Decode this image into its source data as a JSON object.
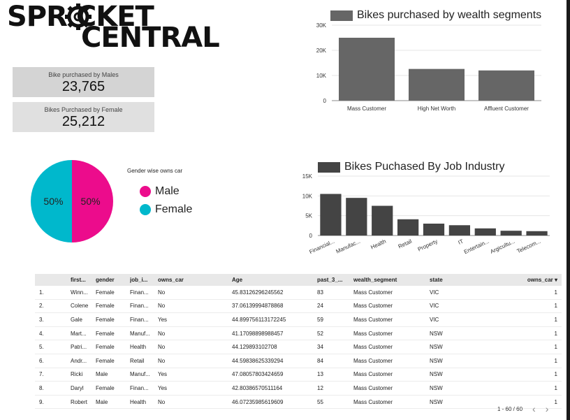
{
  "logo": {
    "line1": "SPR  CKET",
    "line2": "CENTRAL"
  },
  "kpis": [
    {
      "label": "Bike purchased by Males",
      "value": "23,765"
    },
    {
      "label": "Bikes Purchased by Female",
      "value": "25,212"
    }
  ],
  "colors": {
    "bar_wealth": "#666666",
    "bar_job": "#444444",
    "pie_male": "#ec0c8c",
    "pie_female": "#00b8cc"
  },
  "charts": {
    "wealth": {
      "title": "Bikes purchased by wealth segments"
    },
    "job": {
      "title": "Bikes Puchased By Job Industry"
    },
    "pie": {
      "title": "Gender wise owns car",
      "legend": [
        "Male",
        "Female"
      ]
    }
  },
  "chart_data": [
    {
      "type": "bar",
      "title": "Bikes purchased by wealth segments",
      "categories": [
        "Mass Customer",
        "High Net Worth",
        "Affluent Customer"
      ],
      "values": [
        25000,
        12600,
        12000
      ],
      "ylim": [
        0,
        30000
      ],
      "yticks": [
        "0",
        "10K",
        "20K",
        "30K"
      ],
      "grid": true
    },
    {
      "type": "bar",
      "title": "Bikes Puchased By Job Industry",
      "categories": [
        "Financial...",
        "Manufac...",
        "Health",
        "Retail",
        "Property",
        "IT",
        "Entertain...",
        "Argicultu...",
        "Telecom..."
      ],
      "values": [
        10500,
        9500,
        7500,
        4100,
        3000,
        2600,
        1800,
        1200,
        1100
      ],
      "ylim": [
        0,
        15000
      ],
      "yticks": [
        "0",
        "5K",
        "10K",
        "15K"
      ],
      "grid": true
    },
    {
      "type": "pie",
      "title": "Gender wise owns car",
      "labels": [
        "Male",
        "Female"
      ],
      "values": [
        50,
        50
      ],
      "slice_labels": [
        "50%",
        "50%"
      ]
    }
  ],
  "table": {
    "headers": [
      "",
      "first...",
      "gender",
      "job_i...",
      "owns_car",
      "Age",
      "past_3_...",
      "wealth_segment",
      "state",
      "owns_car ▾"
    ],
    "rows": [
      [
        "1.",
        "Winn...",
        "Female",
        "Finan...",
        "No",
        "45.83126296245562",
        "83",
        "Mass Customer",
        "VIC",
        "1"
      ],
      [
        "2.",
        "Colene",
        "Female",
        "Finan...",
        "No",
        "37.06139994878868",
        "24",
        "Mass Customer",
        "VIC",
        "1"
      ],
      [
        "3.",
        "Gale",
        "Female",
        "Finan...",
        "Yes",
        "44.899756113172245",
        "59",
        "Mass Customer",
        "VIC",
        "1"
      ],
      [
        "4.",
        "Mart...",
        "Female",
        "Manuf...",
        "No",
        "41.17098898988457",
        "52",
        "Mass Customer",
        "NSW",
        "1"
      ],
      [
        "5.",
        "Patri...",
        "Female",
        "Health",
        "No",
        "44.129893102708",
        "34",
        "Mass Customer",
        "NSW",
        "1"
      ],
      [
        "6.",
        "Andr...",
        "Female",
        "Retail",
        "No",
        "44.59838625339294",
        "84",
        "Mass Customer",
        "NSW",
        "1"
      ],
      [
        "7.",
        "Ricki",
        "Male",
        "Manuf...",
        "Yes",
        "47.08057803424659",
        "13",
        "Mass Customer",
        "NSW",
        "1"
      ],
      [
        "8.",
        "Daryl",
        "Female",
        "Finan...",
        "Yes",
        "42.80386570511164",
        "12",
        "Mass Customer",
        "NSW",
        "1"
      ],
      [
        "9.",
        "Robert",
        "Male",
        "Health",
        "No",
        "46.07235985619609",
        "55",
        "Mass Customer",
        "NSW",
        "1"
      ]
    ]
  },
  "pager": {
    "label": "1 - 60 / 60",
    "prev": "‹",
    "next": "›"
  }
}
